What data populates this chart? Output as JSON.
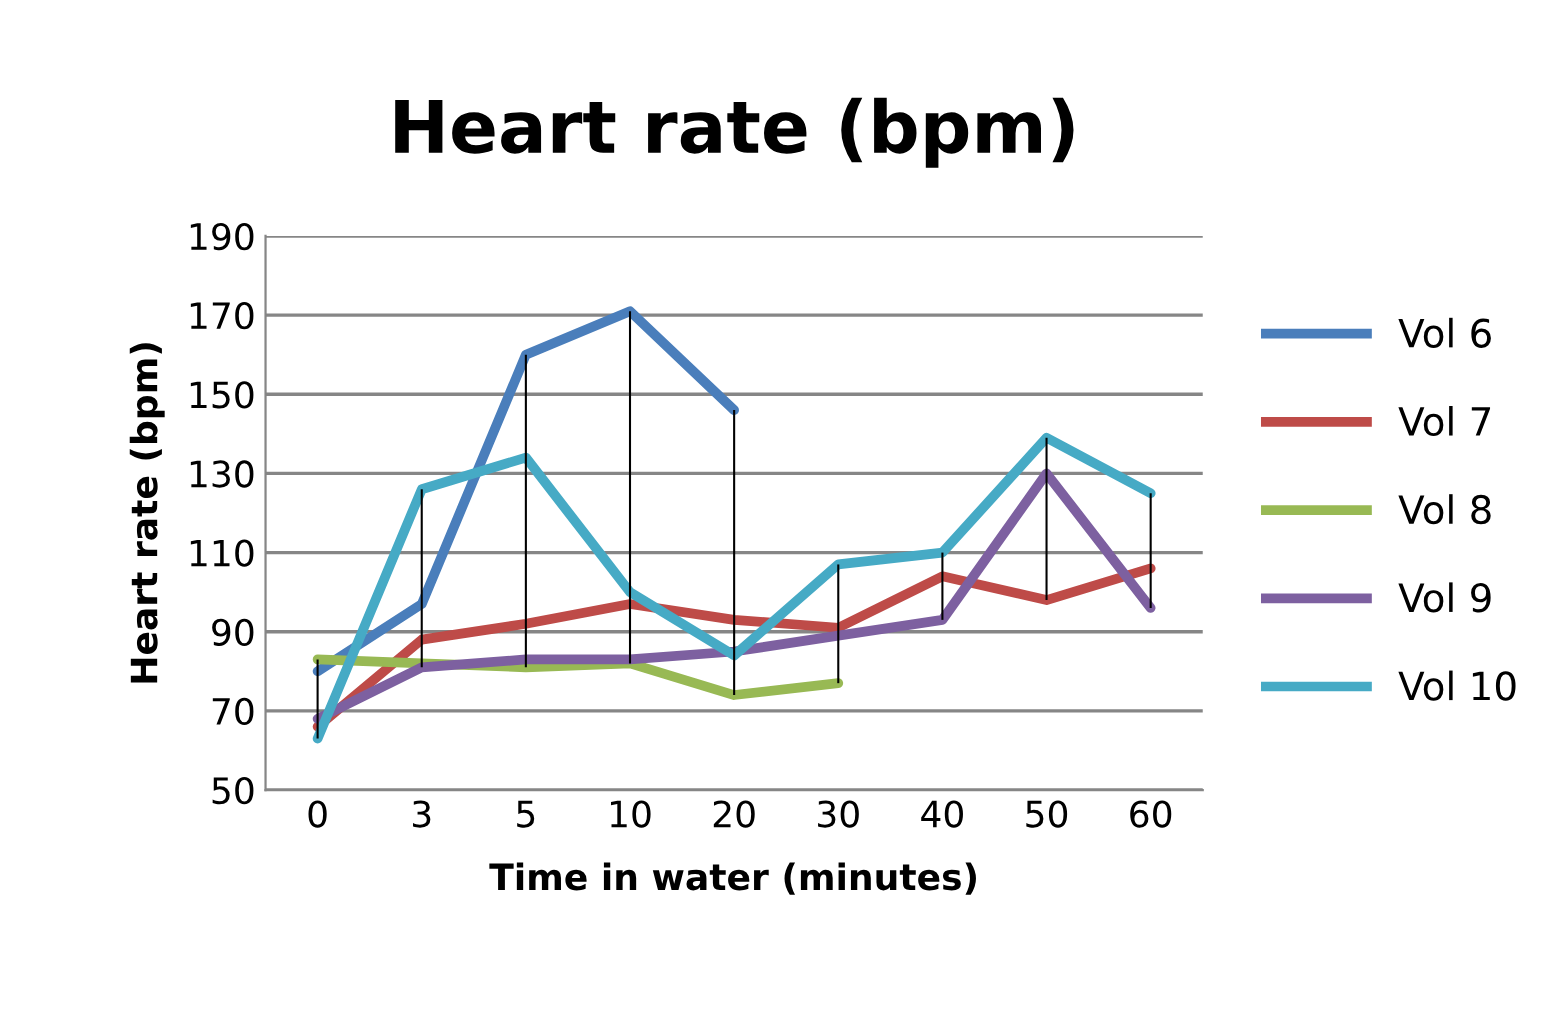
{
  "chart_data": {
    "type": "line",
    "title": "Heart rate (bpm)",
    "xlabel": "Time in water (minutes)",
    "ylabel": "Heart rate (bpm)",
    "categories": [
      "0",
      "3",
      "5",
      "10",
      "20",
      "30",
      "40",
      "50",
      "60"
    ],
    "series": [
      {
        "name": "Vol 6",
        "color": "#4a7ebb",
        "values": [
          80,
          97,
          160,
          171,
          146,
          null,
          null,
          null,
          null
        ]
      },
      {
        "name": "Vol 7",
        "color": "#be4b48",
        "values": [
          66,
          88,
          92,
          97,
          93,
          91,
          104,
          98,
          106
        ]
      },
      {
        "name": "Vol 8",
        "color": "#98b954",
        "values": [
          83,
          82,
          81,
          82,
          74,
          77,
          null,
          null,
          null
        ]
      },
      {
        "name": "Vol 9",
        "color": "#7d60a0",
        "values": [
          68,
          81,
          83,
          83,
          85,
          89,
          93,
          130,
          96
        ]
      },
      {
        "name": "Vol 10",
        "color": "#46aac5",
        "values": [
          63,
          126,
          134,
          100,
          84,
          107,
          110,
          139,
          125
        ]
      },
      {
        "type": "bar",
        "color": "#000000",
        "base": [
          63,
          81,
          81,
          82,
          74,
          77,
          93,
          98,
          96
        ],
        "values": [
          20,
          45,
          79,
          89,
          72,
          30,
          17,
          41,
          29
        ]
      }
    ],
    "ylim": [
      50,
      190
    ],
    "yticks": [
      50,
      70,
      90,
      110,
      130,
      150,
      170,
      190
    ],
    "grid": "y",
    "legend": "right",
    "marker": "none",
    "line_style": "solid"
  }
}
